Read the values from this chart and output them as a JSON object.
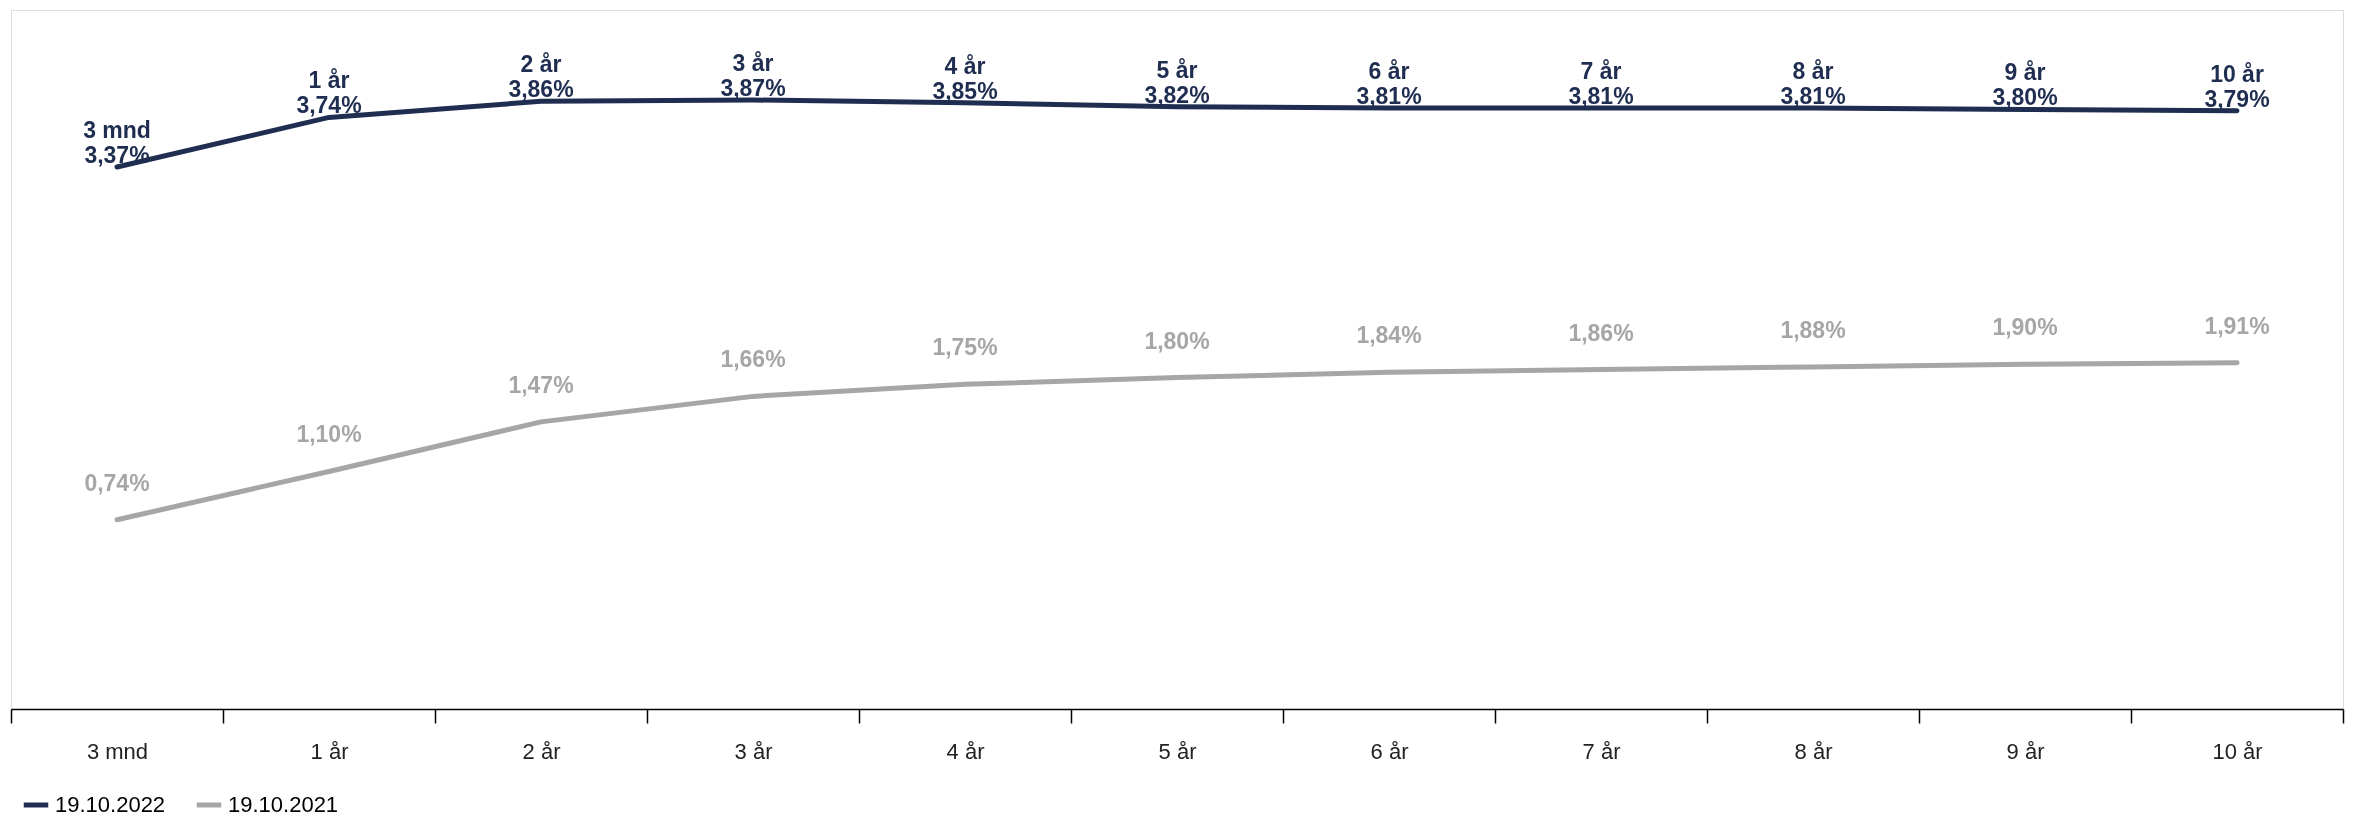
{
  "chart_data": {
    "type": "line",
    "categories": [
      "3 mnd",
      "1 år",
      "2 år",
      "3 år",
      "4 år",
      "5 år",
      "6 år",
      "7 år",
      "8 år",
      "9 år",
      "10 år"
    ],
    "series": [
      {
        "name": "19.10.2022",
        "color": "#1f2d50",
        "values": [
          3.37,
          3.74,
          3.86,
          3.87,
          3.85,
          3.82,
          3.81,
          3.81,
          3.81,
          3.8,
          3.79
        ],
        "value_labels": [
          "3 mnd\n3,37%",
          "1 år\n3,74%",
          "2 år\n3,86%",
          "3 år\n3,87%",
          "4 år\n3,85%",
          "5 år\n3,82%",
          "6 år\n3,81%",
          "7 år\n3,81%",
          "8 år\n3,81%",
          "9 år\n3,80%",
          "10 år\n3,79%"
        ]
      },
      {
        "name": "19.10.2021",
        "color": "#a6a6a6",
        "values": [
          0.74,
          1.1,
          1.47,
          1.66,
          1.75,
          1.8,
          1.84,
          1.86,
          1.88,
          1.9,
          1.91
        ],
        "value_labels": [
          "0,74%",
          "1,10%",
          "1,47%",
          "1,66%",
          "1,75%",
          "1,80%",
          "1,84%",
          "1,86%",
          "1,88%",
          "1,90%",
          "1,91%"
        ]
      }
    ],
    "legend": "bottom",
    "grid": false,
    "marker": "none",
    "line_style": "solid",
    "tick_labels": "x"
  }
}
